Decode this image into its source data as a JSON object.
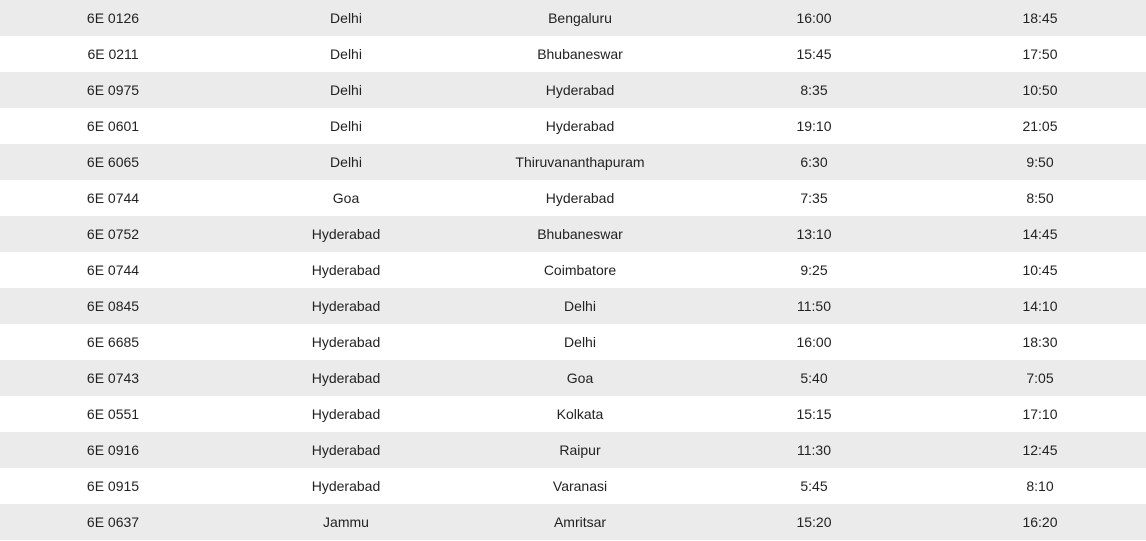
{
  "schedule": {
    "rows": [
      {
        "flight": "6E 0126",
        "from": "Delhi",
        "to": "Bengaluru",
        "departure": "16:00",
        "arrival": "18:45"
      },
      {
        "flight": "6E 0211",
        "from": "Delhi",
        "to": "Bhubaneswar",
        "departure": "15:45",
        "arrival": "17:50"
      },
      {
        "flight": "6E 0975",
        "from": "Delhi",
        "to": "Hyderabad",
        "departure": "8:35",
        "arrival": "10:50"
      },
      {
        "flight": "6E 0601",
        "from": "Delhi",
        "to": "Hyderabad",
        "departure": "19:10",
        "arrival": "21:05"
      },
      {
        "flight": "6E 6065",
        "from": "Delhi",
        "to": "Thiruvananthapuram",
        "departure": "6:30",
        "arrival": "9:50"
      },
      {
        "flight": "6E 0744",
        "from": "Goa",
        "to": "Hyderabad",
        "departure": "7:35",
        "arrival": "8:50"
      },
      {
        "flight": "6E 0752",
        "from": "Hyderabad",
        "to": "Bhubaneswar",
        "departure": "13:10",
        "arrival": "14:45"
      },
      {
        "flight": "6E 0744",
        "from": "Hyderabad",
        "to": "Coimbatore",
        "departure": "9:25",
        "arrival": "10:45"
      },
      {
        "flight": "6E 0845",
        "from": "Hyderabad",
        "to": "Delhi",
        "departure": "11:50",
        "arrival": "14:10"
      },
      {
        "flight": "6E 6685",
        "from": "Hyderabad",
        "to": "Delhi",
        "departure": "16:00",
        "arrival": "18:30"
      },
      {
        "flight": "6E 0743",
        "from": "Hyderabad",
        "to": "Goa",
        "departure": "5:40",
        "arrival": "7:05"
      },
      {
        "flight": "6E 0551",
        "from": "Hyderabad",
        "to": "Kolkata",
        "departure": "15:15",
        "arrival": "17:10"
      },
      {
        "flight": "6E 0916",
        "from": "Hyderabad",
        "to": "Raipur",
        "departure": "11:30",
        "arrival": "12:45"
      },
      {
        "flight": "6E 0915",
        "from": "Hyderabad",
        "to": "Varanasi",
        "departure": "5:45",
        "arrival": "8:10"
      },
      {
        "flight": "6E 0637",
        "from": "Jammu",
        "to": "Amritsar",
        "departure": "15:20",
        "arrival": "16:20"
      }
    ]
  }
}
